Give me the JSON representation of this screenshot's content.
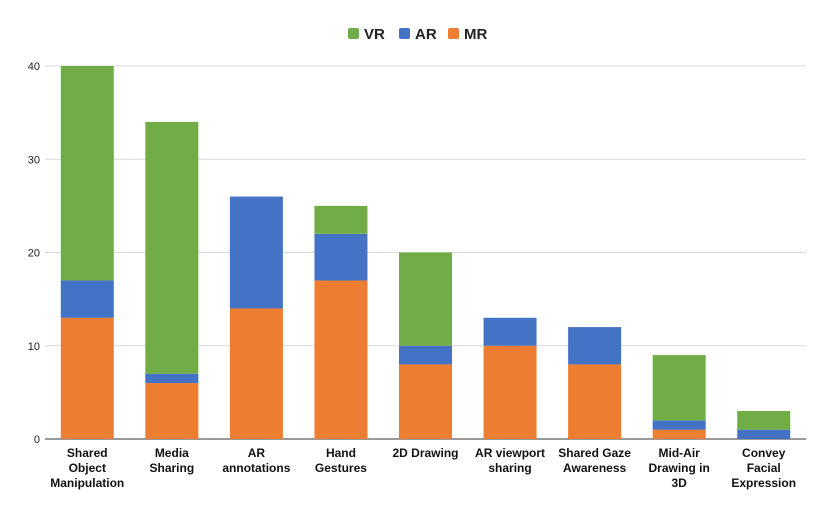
{
  "chart_data": {
    "type": "bar",
    "stacked": true,
    "title": "",
    "xlabel": "",
    "ylabel": "",
    "ylim": [
      0,
      40
    ],
    "yticks": [
      0,
      10,
      20,
      30,
      40
    ],
    "grid": true,
    "legend_position": "top-center",
    "categories": [
      [
        "Shared",
        "Object",
        "Manipulation"
      ],
      [
        "Media",
        "Sharing"
      ],
      [
        "AR",
        "annotations"
      ],
      [
        "Hand",
        "Gestures"
      ],
      [
        "2D Drawing"
      ],
      [
        "AR viewport",
        "sharing"
      ],
      [
        "Shared Gaze",
        "Awareness"
      ],
      [
        "Mid-Air",
        "Drawing in",
        "3D"
      ],
      [
        "Convey",
        "Facial",
        "Expression"
      ]
    ],
    "series": [
      {
        "name": "MR",
        "color": "#ED7D31",
        "values": [
          13,
          6,
          14,
          17,
          8,
          10,
          8,
          1,
          0
        ]
      },
      {
        "name": "AR",
        "color": "#4472C4",
        "values": [
          4,
          1,
          12,
          5,
          2,
          3,
          4,
          1,
          1
        ]
      },
      {
        "name": "VR",
        "color": "#70AD47",
        "values": [
          23,
          27,
          0,
          3,
          10,
          0,
          0,
          7,
          2
        ]
      }
    ],
    "legend_order": [
      "VR",
      "AR",
      "MR"
    ]
  }
}
